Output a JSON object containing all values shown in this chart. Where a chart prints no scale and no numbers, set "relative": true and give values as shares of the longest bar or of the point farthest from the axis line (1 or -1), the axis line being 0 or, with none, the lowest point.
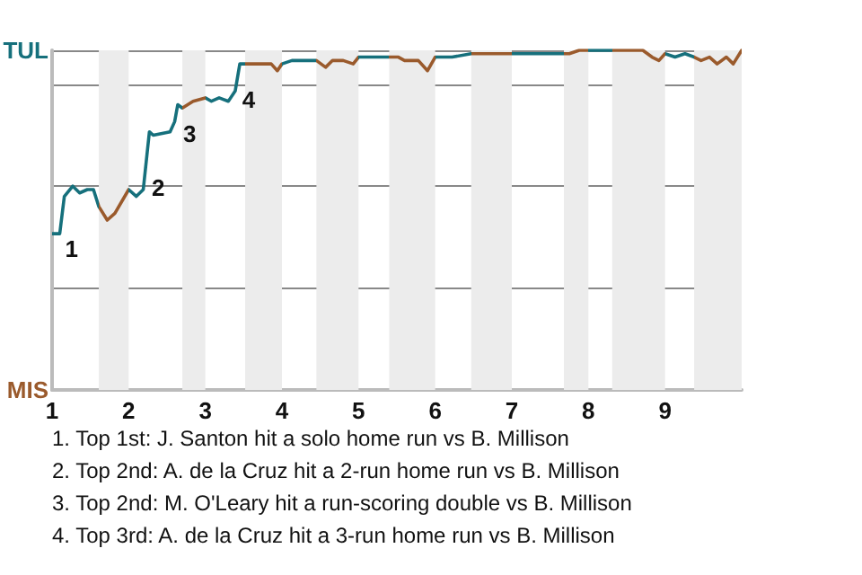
{
  "chart_data": {
    "type": "line",
    "relative": true,
    "series": [
      {
        "x": [
          1.0,
          1.1,
          1.16,
          1.27,
          1.36,
          1.46,
          1.54,
          1.61,
          1.72,
          1.82,
          2.0,
          2.1,
          2.19,
          2.27,
          2.32,
          2.54,
          2.6,
          2.64,
          2.7,
          2.84,
          3.0,
          3.08,
          3.18,
          3.3,
          3.39,
          3.45,
          3.52,
          3.71,
          3.86,
          3.94,
          4.0,
          4.13,
          4.32,
          4.45,
          4.57,
          4.66,
          4.8,
          4.93,
          5.0,
          5.1,
          5.21,
          5.4,
          5.52,
          5.6,
          5.78,
          5.9,
          6.0,
          6.22,
          6.47,
          6.69,
          6.79,
          7.0,
          7.68,
          7.75,
          7.88,
          8.0,
          8.31,
          8.59,
          8.71,
          8.83,
          8.92,
          9.0,
          9.13,
          9.26,
          9.38,
          9.47,
          9.58,
          9.68,
          9.8,
          9.89,
          10
        ],
        "values": [
          0.46,
          0.46,
          0.57,
          0.6,
          0.58,
          0.59,
          0.59,
          0.54,
          0.5,
          0.52,
          0.59,
          0.57,
          0.59,
          0.76,
          0.75,
          0.76,
          0.79,
          0.84,
          0.83,
          0.85,
          0.86,
          0.85,
          0.86,
          0.85,
          0.88,
          0.96,
          0.96,
          0.96,
          0.96,
          0.94,
          0.96,
          0.97,
          0.97,
          0.97,
          0.95,
          0.97,
          0.97,
          0.96,
          0.98,
          0.98,
          0.98,
          0.98,
          0.98,
          0.97,
          0.97,
          0.94,
          0.98,
          0.98,
          0.99,
          0.99,
          0.99,
          0.99,
          0.99,
          0.99,
          1,
          1,
          1,
          1,
          1,
          0.98,
          0.97,
          0.99,
          0.98,
          0.99,
          0.98,
          0.97,
          0.98,
          0.96,
          0.98,
          0.96,
          1
        ],
        "colors": [
          "#16707c",
          "#16707c",
          "#16707c",
          "#16707c",
          "#16707c",
          "#16707c",
          "#16707c",
          "#16707c",
          "#9a5a2c",
          "#9a5a2c",
          "#9a5a2c",
          "#16707c",
          "#16707c",
          "#16707c",
          "#16707c",
          "#16707c",
          "#16707c",
          "#16707c",
          "#16707c",
          "#9a5a2c",
          "#9a5a2c",
          "#16707c",
          "#16707c",
          "#16707c",
          "#16707c",
          "#16707c",
          "#16707c",
          "#9a5a2c",
          "#9a5a2c",
          "#9a5a2c",
          "#9a5a2c",
          "#16707c",
          "#16707c",
          "#16707c",
          "#9a5a2c",
          "#9a5a2c",
          "#9a5a2c",
          "#9a5a2c",
          "#9a5a2c",
          "#16707c",
          "#16707c",
          "#16707c",
          "#9a5a2c",
          "#9a5a2c",
          "#9a5a2c",
          "#9a5a2c",
          "#9a5a2c",
          "#16707c",
          "#16707c",
          "#9a5a2c",
          "#9a5a2c",
          "#9a5a2c",
          "#16707c",
          "#9a5a2c",
          "#9a5a2c",
          "#9a5a2c",
          "#16707c",
          "#9a5a2c",
          "#9a5a2c",
          "#9a5a2c",
          "#9a5a2c",
          "#9a5a2c",
          "#16707c",
          "#16707c",
          "#16707c",
          "#9a5a2c",
          "#9a5a2c",
          "#9a5a2c",
          "#9a5a2c",
          "#9a5a2c",
          "#9a5a2c"
        ]
      }
    ],
    "xlim": [
      1,
      10
    ],
    "xticks": [
      1,
      2,
      3,
      4,
      5,
      6,
      7,
      8,
      9
    ],
    "grid": "y",
    "marker": "none",
    "bands": [
      {
        "axis": "x",
        "from": 1.61,
        "to": 2,
        "color": "#ececec"
      },
      {
        "axis": "x",
        "from": 2.7,
        "to": 3,
        "color": "#ececec"
      },
      {
        "axis": "x",
        "from": 3.52,
        "to": 4,
        "color": "#ececec"
      },
      {
        "axis": "x",
        "from": 4.45,
        "to": 5,
        "color": "#ececec"
      },
      {
        "axis": "x",
        "from": 5.4,
        "to": 6,
        "color": "#ececec"
      },
      {
        "axis": "x",
        "from": 6.47,
        "to": 7,
        "color": "#ececec"
      },
      {
        "axis": "x",
        "from": 7.68,
        "to": 8,
        "color": "#ececec"
      },
      {
        "axis": "x",
        "from": 8.31,
        "to": 9,
        "color": "#ececec"
      },
      {
        "axis": "x",
        "from": 9.38,
        "to": 10,
        "color": "#ececec"
      }
    ],
    "annotations": [
      "TUL",
      "MIS",
      {
        "text": "1",
        "x": 1.1,
        "y": 0.46
      },
      {
        "text": "2",
        "x": 2.23,
        "y": 0.64
      },
      {
        "text": "3",
        "x": 2.64,
        "y": 0.8
      },
      {
        "text": "4",
        "x": 3.41,
        "y": 0.9
      },
      "1. Top 1st: J. Santon hit a solo home run vs B. Millison",
      "2. Top 2nd: A. de la Cruz hit a 2-run home run vs B. Millison",
      "3. Top 2nd: M. O'Leary hit a run-scoring double vs B. Millison",
      "4. Top 3rd: A. de la Cruz hit a 3-run home run vs B. Millison"
    ]
  }
}
